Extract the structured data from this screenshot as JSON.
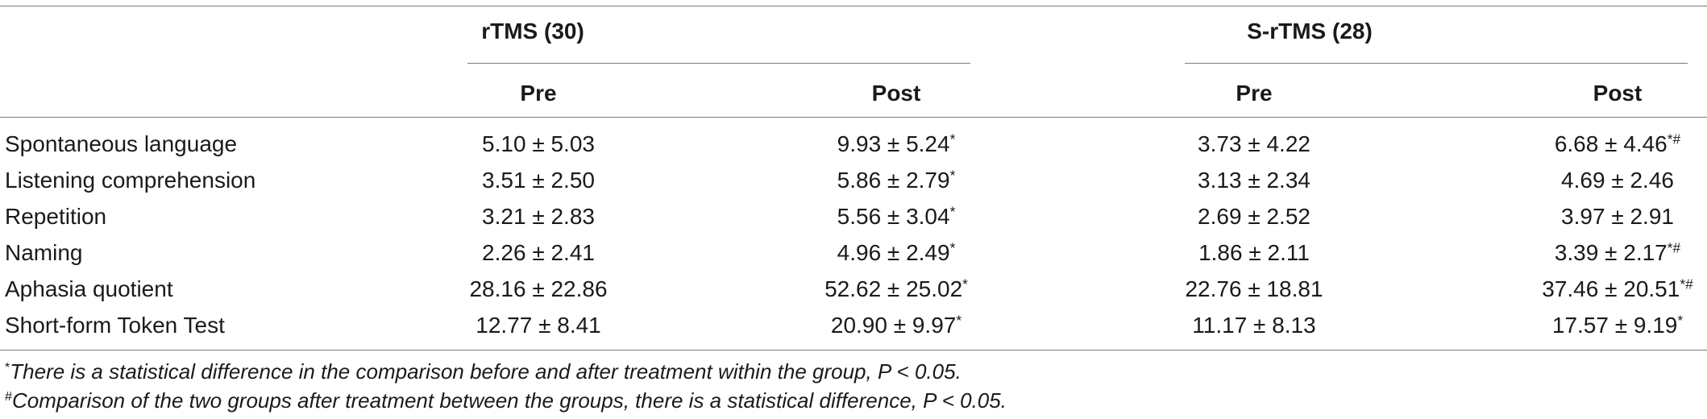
{
  "groups": [
    {
      "label": "rTMS (30)"
    },
    {
      "label": "S-rTMS (28)"
    }
  ],
  "subheaders": [
    "Pre",
    "Post",
    "Pre",
    "Post"
  ],
  "rows": [
    {
      "label": "Spontaneous language",
      "cells": [
        {
          "value": "5.10 ± 5.03",
          "mark": ""
        },
        {
          "value": "9.93 ± 5.24",
          "mark": "*"
        },
        {
          "value": "3.73 ± 4.22",
          "mark": ""
        },
        {
          "value": "6.68 ± 4.46",
          "mark": "*#"
        }
      ]
    },
    {
      "label": "Listening comprehension",
      "cells": [
        {
          "value": "3.51 ± 2.50",
          "mark": ""
        },
        {
          "value": "5.86 ± 2.79",
          "mark": "*"
        },
        {
          "value": "3.13 ± 2.34",
          "mark": ""
        },
        {
          "value": "4.69 ± 2.46",
          "mark": ""
        }
      ]
    },
    {
      "label": "Repetition",
      "cells": [
        {
          "value": "3.21 ± 2.83",
          "mark": ""
        },
        {
          "value": "5.56 ± 3.04",
          "mark": "*"
        },
        {
          "value": "2.69 ± 2.52",
          "mark": ""
        },
        {
          "value": "3.97 ± 2.91",
          "mark": ""
        }
      ]
    },
    {
      "label": "Naming",
      "cells": [
        {
          "value": "2.26 ± 2.41",
          "mark": ""
        },
        {
          "value": "4.96 ± 2.49",
          "mark": "*"
        },
        {
          "value": "1.86 ± 2.11",
          "mark": ""
        },
        {
          "value": "3.39 ± 2.17",
          "mark": "*#"
        }
      ]
    },
    {
      "label": "Aphasia quotient",
      "cells": [
        {
          "value": "28.16 ± 22.86",
          "mark": ""
        },
        {
          "value": "52.62 ± 25.02",
          "mark": "*"
        },
        {
          "value": "22.76 ± 18.81",
          "mark": ""
        },
        {
          "value": "37.46 ± 20.51",
          "mark": "*#"
        }
      ]
    },
    {
      "label": "Short-form Token Test",
      "cells": [
        {
          "value": "12.77 ± 8.41",
          "mark": ""
        },
        {
          "value": "20.90 ± 9.97",
          "mark": "*"
        },
        {
          "value": "11.17 ± 8.13",
          "mark": ""
        },
        {
          "value": "17.57 ± 9.19",
          "mark": "*"
        }
      ]
    }
  ],
  "footnotes": [
    {
      "mark": "*",
      "text": "There is a statistical difference in the comparison before and after treatment within the group, P < 0.05."
    },
    {
      "mark": "#",
      "text": "Comparison of the two groups after treatment between the groups, there is a statistical difference, P < 0.05."
    }
  ]
}
